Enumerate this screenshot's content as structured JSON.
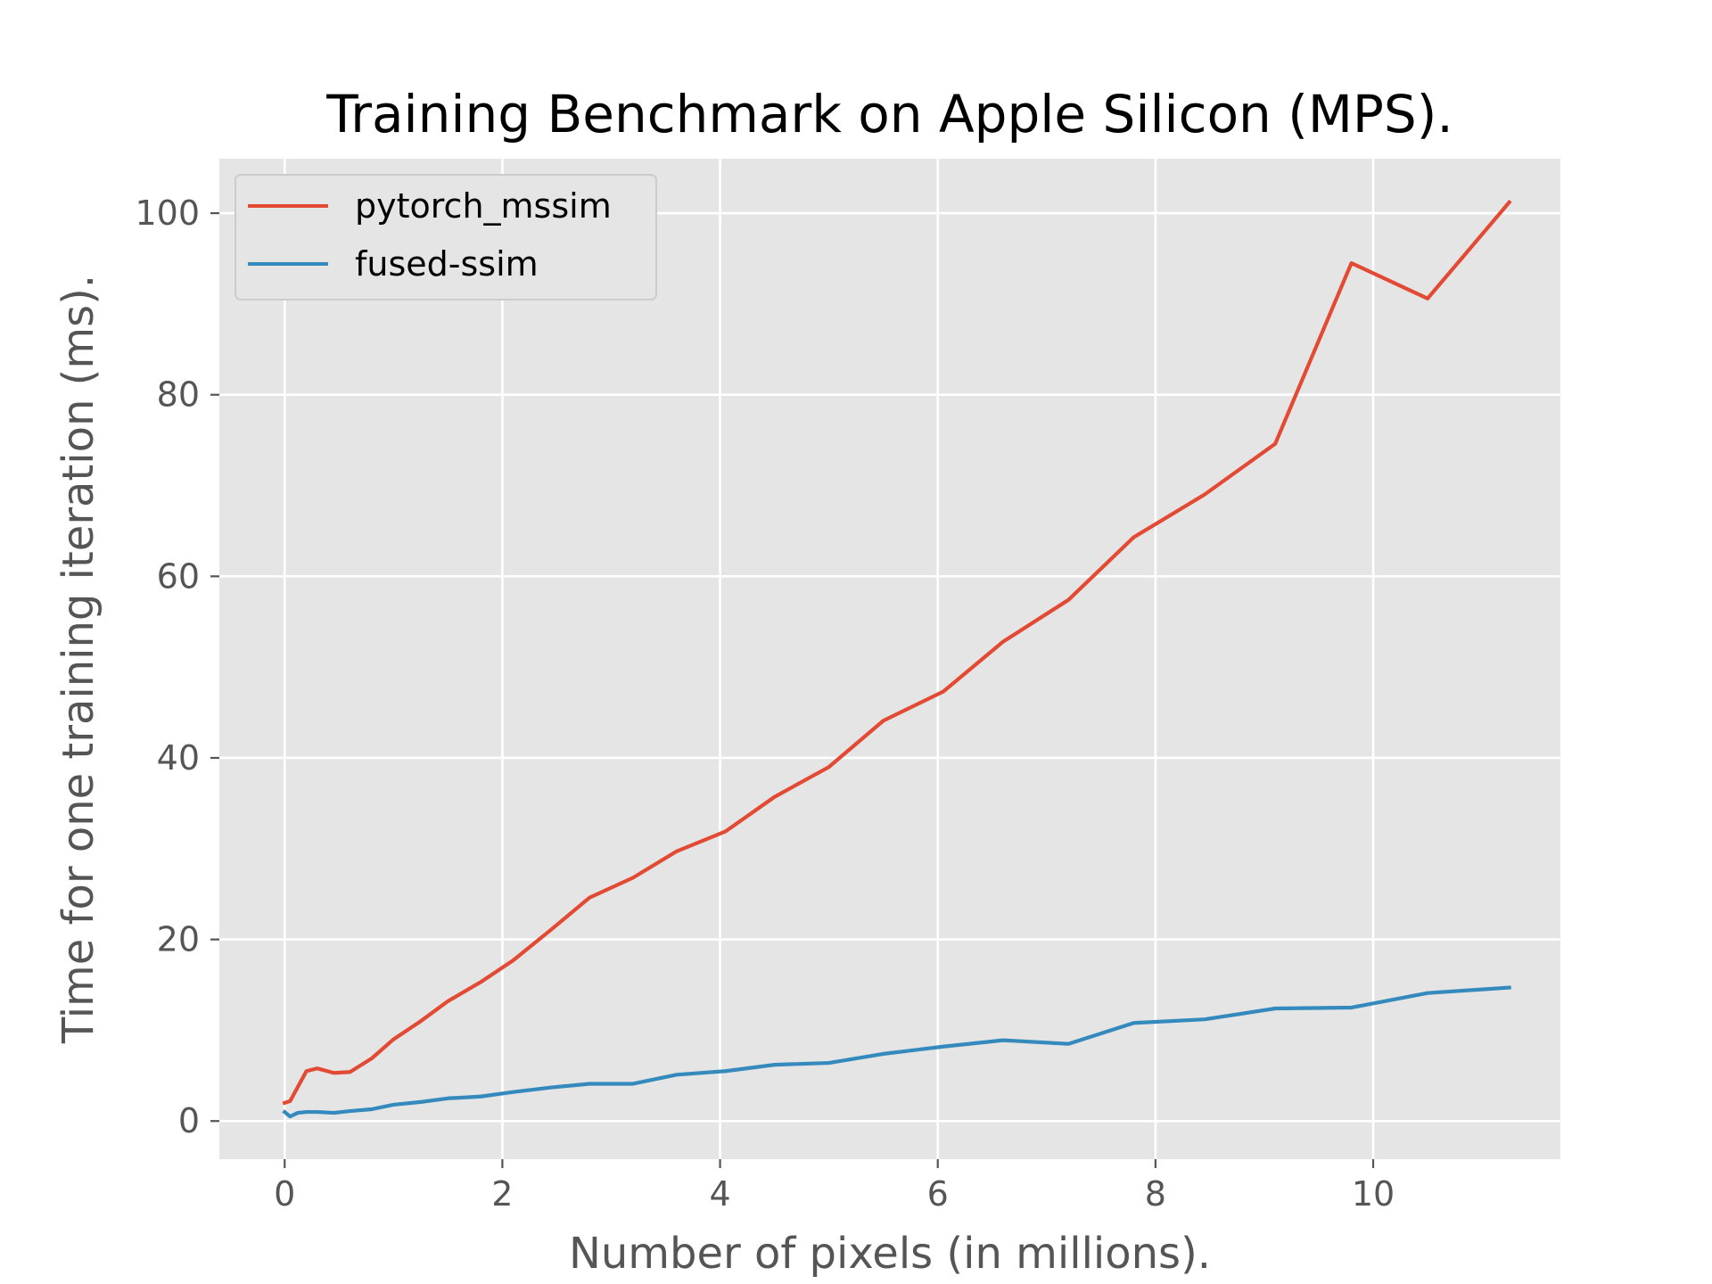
{
  "chart_data": {
    "type": "line",
    "title": "Training Benchmark on Apple Silicon (MPS).",
    "xlabel": "Number of pixels (in millions).",
    "ylabel": "Time for one training iteration (ms).",
    "xlim": [
      -0.6,
      11.72
    ],
    "ylim": [
      -4.2,
      106.0
    ],
    "xticks": [
      0,
      2,
      4,
      6,
      8,
      10
    ],
    "xtick_labels": [
      "0",
      "2",
      "4",
      "6",
      "8",
      "10"
    ],
    "yticks": [
      0,
      20,
      40,
      60,
      80,
      100
    ],
    "ytick_labels": [
      "0",
      "20",
      "40",
      "60",
      "80",
      "100"
    ],
    "grid": true,
    "legend_position": "top-left",
    "style": {
      "plot_background": "#e5e5e5",
      "grid_color": "#ffffff",
      "tick_color": "#555555"
    },
    "series": [
      {
        "name": "pytorch_mssim",
        "color": "#e24a33",
        "x": [
          0.0,
          0.05,
          0.2,
          0.3,
          0.45,
          0.6,
          0.8,
          1.0,
          1.25,
          1.5,
          1.8,
          2.1,
          2.45,
          2.8,
          3.2,
          3.6,
          4.05,
          4.5,
          5.0,
          5.5,
          6.05,
          6.6,
          7.2,
          7.8,
          8.45,
          9.1,
          9.8,
          10.5,
          11.25
        ],
        "y": [
          2.0,
          2.2,
          5.5,
          5.8,
          5.3,
          5.4,
          6.9,
          9.0,
          11.0,
          13.2,
          15.3,
          17.7,
          21.1,
          24.6,
          26.8,
          29.7,
          31.9,
          35.7,
          39.0,
          44.1,
          47.3,
          52.8,
          57.4,
          64.3,
          69.0,
          74.6,
          94.5,
          90.6,
          101.2
        ]
      },
      {
        "name": "fused-ssim",
        "color": "#348abd",
        "x": [
          0.0,
          0.05,
          0.12,
          0.2,
          0.3,
          0.45,
          0.6,
          0.8,
          1.0,
          1.25,
          1.5,
          1.8,
          2.1,
          2.45,
          2.8,
          3.2,
          3.6,
          4.05,
          4.5,
          5.0,
          5.5,
          6.05,
          6.6,
          7.2,
          7.8,
          8.45,
          9.1,
          9.8,
          10.5,
          11.25
        ],
        "y": [
          1.0,
          0.5,
          0.9,
          1.0,
          1.0,
          0.9,
          1.1,
          1.3,
          1.8,
          2.1,
          2.5,
          2.7,
          3.2,
          3.7,
          4.1,
          4.1,
          5.1,
          5.5,
          6.2,
          6.4,
          7.4,
          8.2,
          8.9,
          8.5,
          10.8,
          11.2,
          12.4,
          12.5,
          14.1,
          14.7
        ]
      }
    ]
  }
}
